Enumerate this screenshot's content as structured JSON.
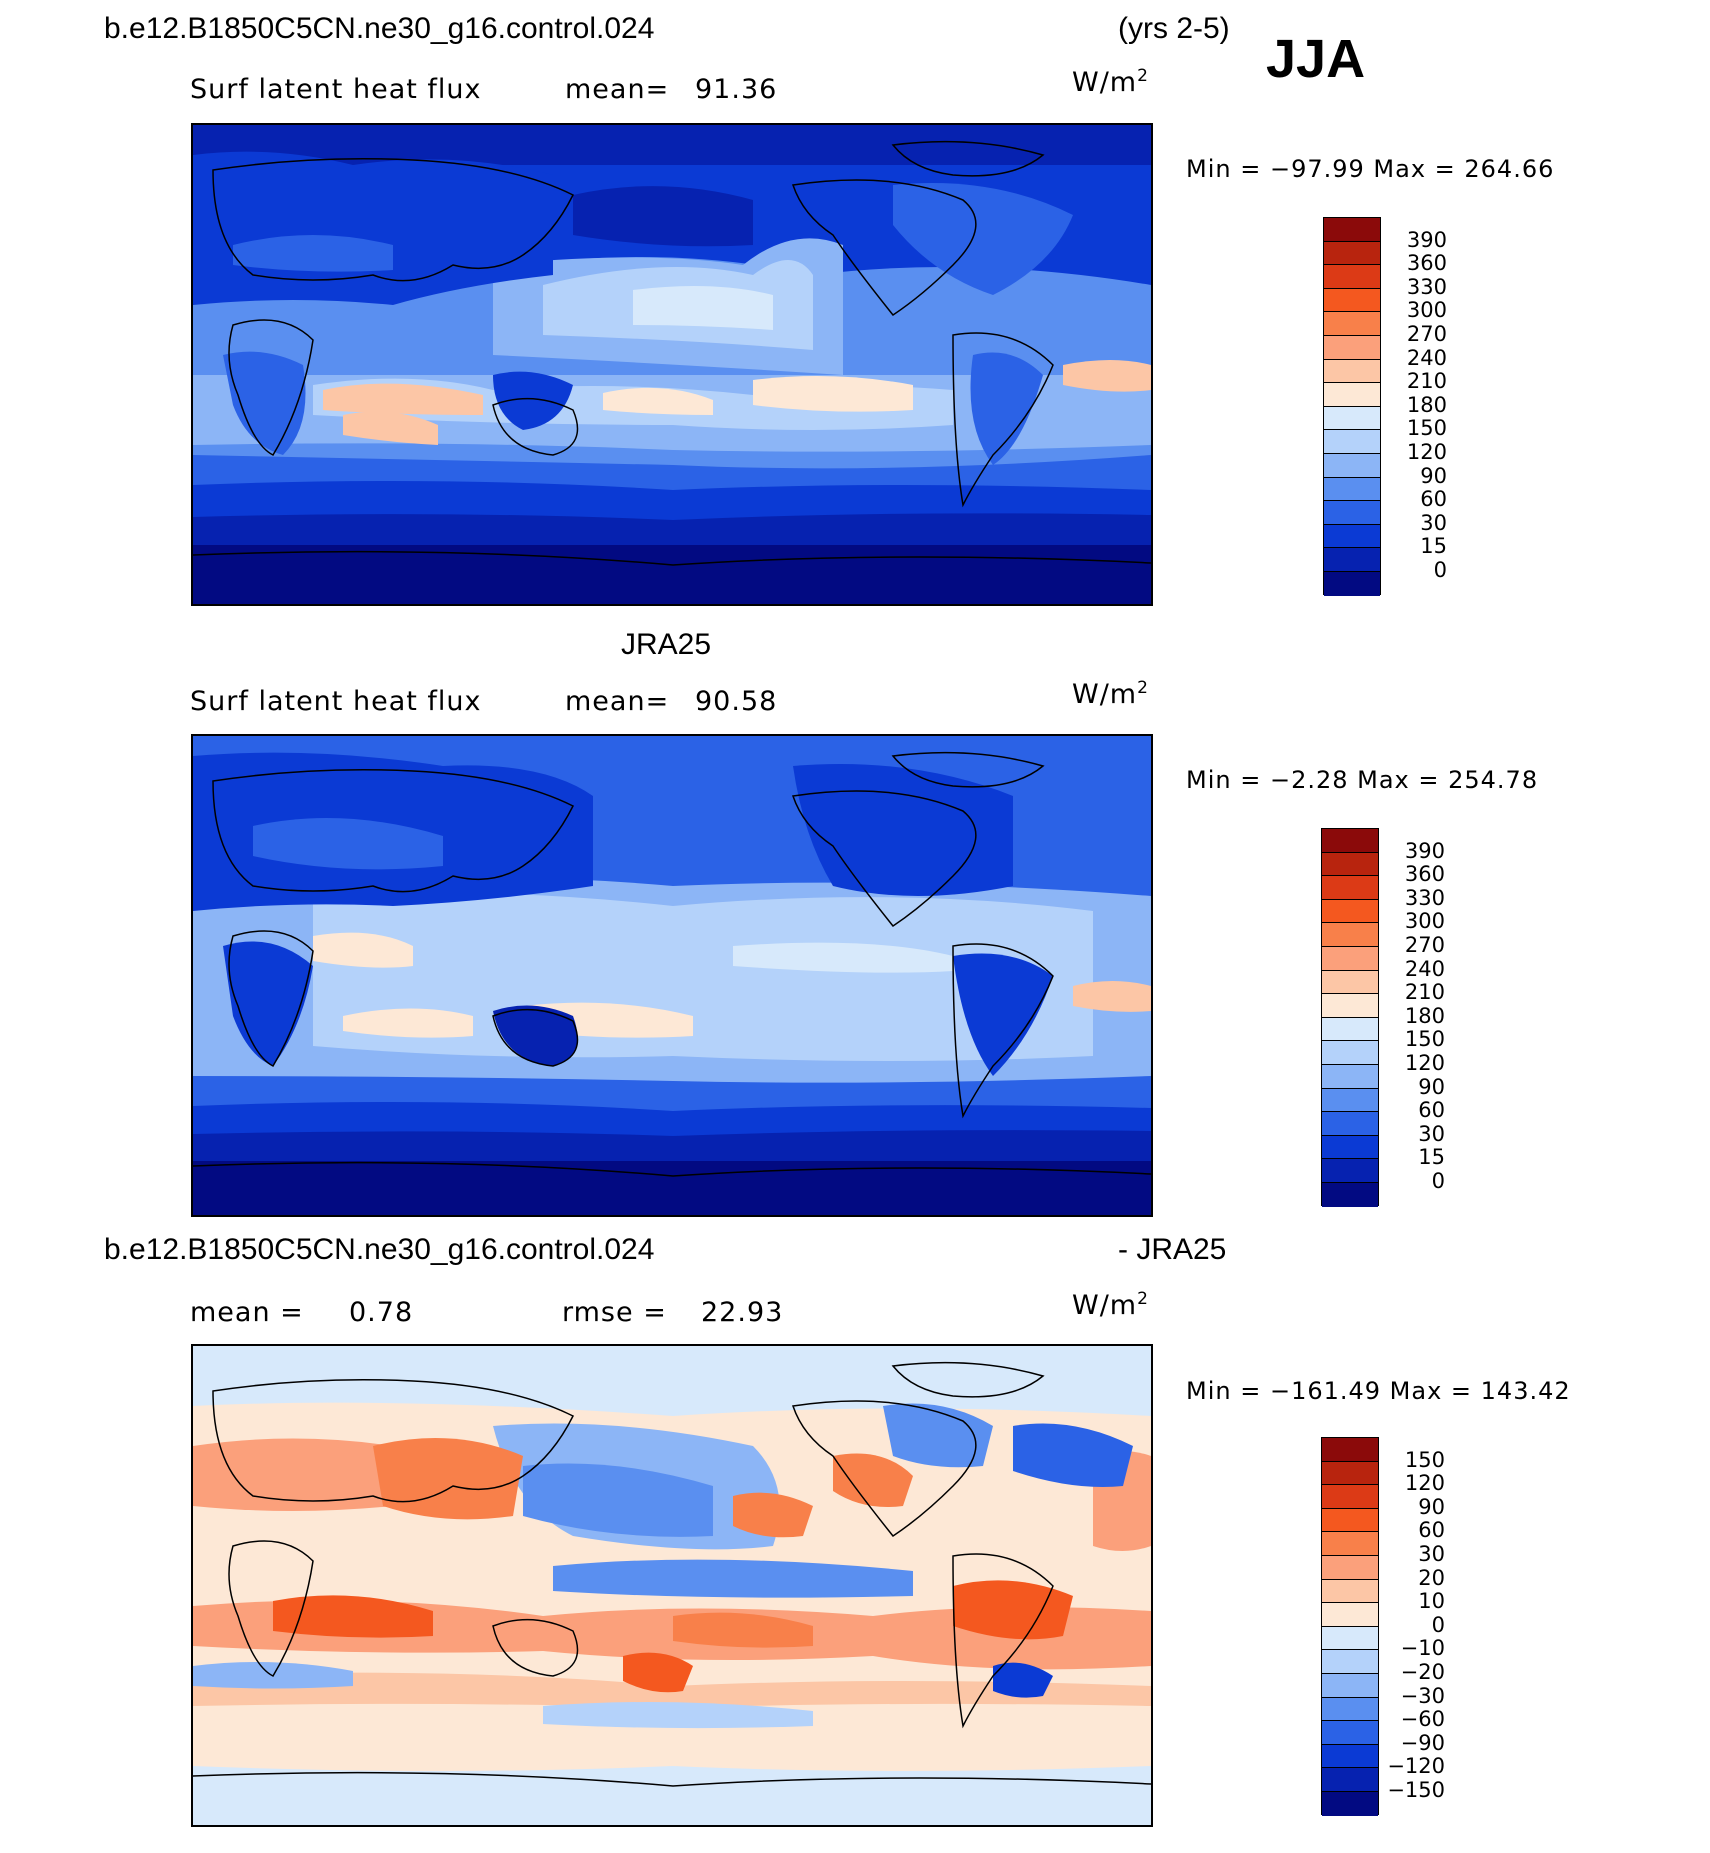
{
  "season_label": "JJA",
  "top": {
    "case_name": "b.e12.B1850C5CN.ne30_g16.control.024",
    "years": "(yrs 2-5)",
    "variable": "Surf latent heat flux",
    "mean_label": "mean=",
    "mean_value": "91.36",
    "units": "W/m",
    "units_sup": "2",
    "minmax": "Min = −97.99 Max = 264.66",
    "colorbar_labels": [
      "390",
      "360",
      "330",
      "300",
      "270",
      "240",
      "210",
      "180",
      "150",
      "120",
      "90",
      "60",
      "30",
      "15",
      "0"
    ]
  },
  "middle": {
    "dataset_name": "JRA25",
    "variable": "Surf latent heat flux",
    "mean_label": "mean=",
    "mean_value": "90.58",
    "units": "W/m",
    "units_sup": "2",
    "minmax": "Min =  −2.28 Max = 254.78",
    "colorbar_labels": [
      "390",
      "360",
      "330",
      "300",
      "270",
      "240",
      "210",
      "180",
      "150",
      "120",
      "90",
      "60",
      "30",
      "15",
      "0"
    ]
  },
  "bottom": {
    "case_name": "b.e12.B1850C5CN.ne30_g16.control.024",
    "minus_label": "- JRA25",
    "mean_label": "mean =",
    "mean_value": "0.78",
    "rmse_label": "rmse =",
    "rmse_value": "22.93",
    "units": "W/m",
    "units_sup": "2",
    "minmax": "Min = −161.49 Max = 143.42",
    "colorbar_labels": [
      "150",
      "120",
      "90",
      "60",
      "30",
      "20",
      "10",
      "0",
      "−10",
      "−20",
      "−30",
      "−60",
      "−90",
      "−120",
      "−150"
    ]
  },
  "colors": {
    "abs_scale": [
      "#8b0a0a",
      "#b8240e",
      "#dc3a16",
      "#f4581f",
      "#f8804a",
      "#fba07b",
      "#fcc6a6",
      "#fde8d6",
      "#d7e9fb",
      "#b4d2fa",
      "#8cb5f6",
      "#5a8ff0",
      "#2b62e6",
      "#0b3ad4",
      "#0622b0",
      "#020a82"
    ],
    "diff_scale": [
      "#8b0a0a",
      "#b8240e",
      "#dc3a16",
      "#f4581f",
      "#f8804a",
      "#fba07b",
      "#fcc6a6",
      "#fde8d6",
      "#d7e9fb",
      "#b4d2fa",
      "#8cb5f6",
      "#5a8ff0",
      "#2b62e6",
      "#0b3ad4",
      "#0622b0",
      "#020a82"
    ]
  }
}
